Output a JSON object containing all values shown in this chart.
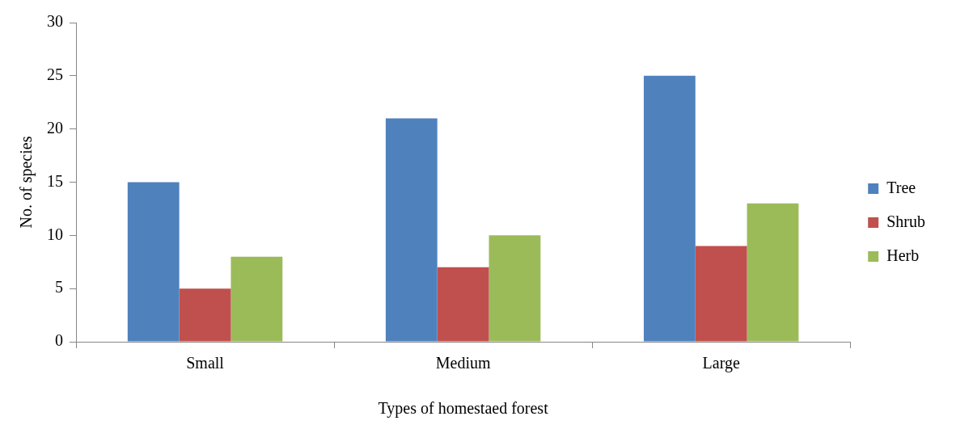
{
  "chart_data": {
    "type": "bar",
    "xlabel": "Types of homestaed forest",
    "ylabel": "No. of species",
    "categories": [
      "Small",
      "Medium",
      "Large"
    ],
    "series": [
      {
        "name": "Tree",
        "color": "#4f81bd",
        "values": [
          15,
          21,
          25
        ]
      },
      {
        "name": "Shrub",
        "color": "#c0504d",
        "values": [
          5,
          7,
          9
        ]
      },
      {
        "name": "Herb",
        "color": "#9bbb59",
        "values": [
          8,
          10,
          13
        ]
      }
    ],
    "ylim": [
      0,
      30
    ],
    "yticks": [
      0,
      5,
      10,
      15,
      20,
      25,
      30
    ],
    "grid": false,
    "legend": "right"
  }
}
